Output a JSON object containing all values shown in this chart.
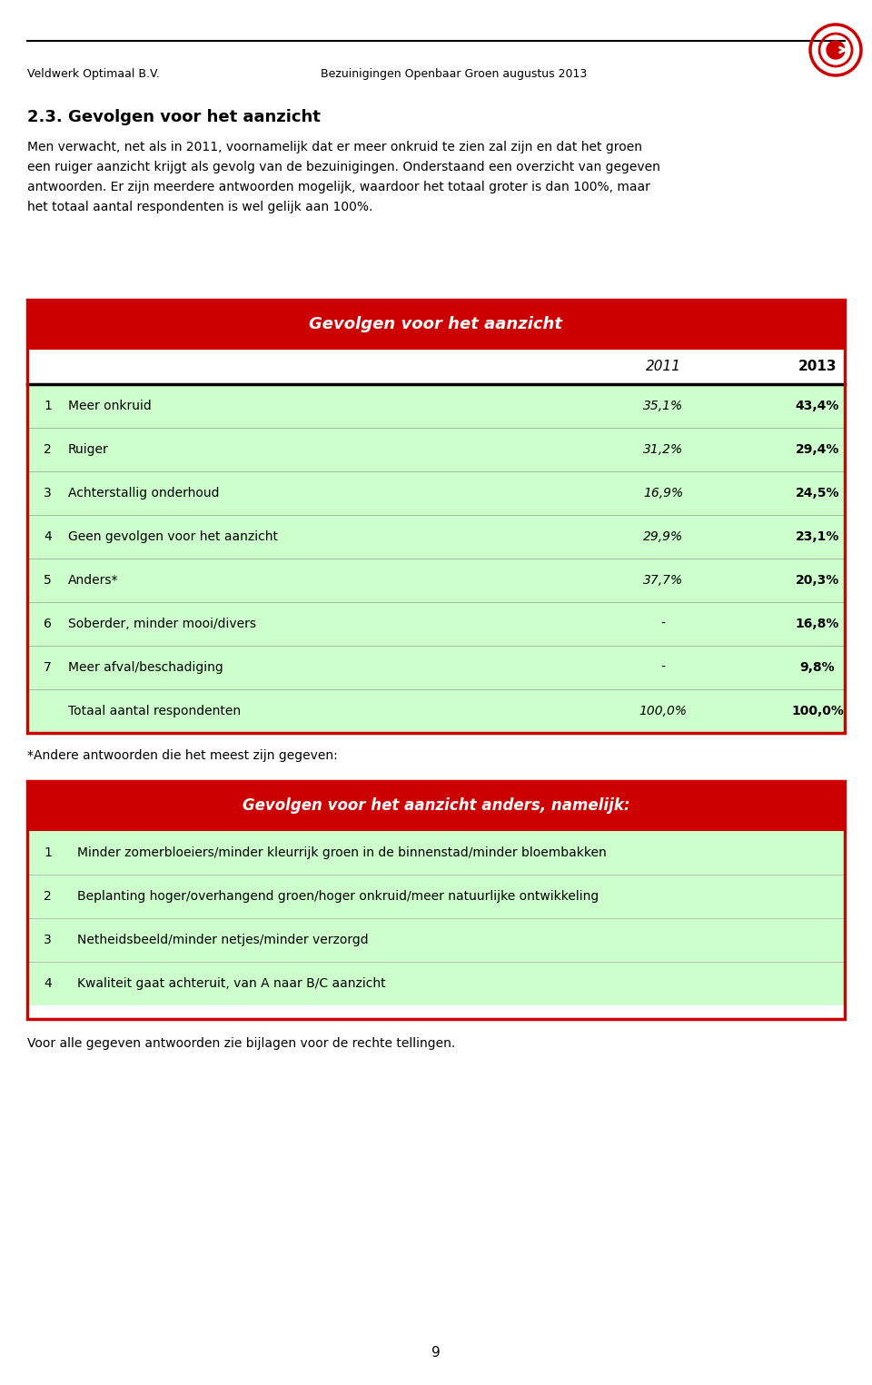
{
  "header_left": "Veldwerk Optimaal B.V.",
  "header_right": "Bezuinigingen Openbaar Groen augustus 2013",
  "section_title": "2.3. Gevolgen voor het aanzicht",
  "intro_text": "Men verwacht, net als in 2011, voornamelijk dat er meer onkruid te zien zal zijn en dat het groen\neen ruiger aanzicht krijgt als gevolg van de bezuinigingen. Onderstaand een overzicht van gegeven\nantwoorden. Er zijn meerdere antwoorden mogelijk, waardoor het totaal groter is dan 100%, maar\nhet totaal aantal respondenten is wel gelijk aan 100%.",
  "table1_title": "Gevolgen voor het aanzicht",
  "table1_col_headers": [
    "",
    "2011",
    "2013"
  ],
  "table1_rows": [
    [
      "1",
      "Meer onkruid",
      "35,1%",
      "43,4%"
    ],
    [
      "2",
      "Ruiger",
      "31,2%",
      "29,4%"
    ],
    [
      "3",
      "Achterstallig onderhoud",
      "16,9%",
      "24,5%"
    ],
    [
      "4",
      "Geen gevolgen voor het aanzicht",
      "29,9%",
      "23,1%"
    ],
    [
      "5",
      "Anders*",
      "37,7%",
      "20,3%"
    ],
    [
      "6",
      "Soberder, minder mooi/divers",
      "-",
      "16,8%"
    ],
    [
      "7",
      "Meer afval/beschadiging",
      "-",
      "9,8%"
    ],
    [
      "",
      "Totaal aantal respondenten",
      "100,0%",
      "100,0%"
    ]
  ],
  "footnote1": "*Andere antwoorden die het meest zijn gegeven:",
  "table2_title": "Gevolgen voor het aanzicht anders, namelijk:",
  "table2_rows": [
    [
      "1",
      "Minder zomerbloeiers/minder kleurrijk groen in de binnenstad/minder bloembakken"
    ],
    [
      "2",
      "Beplanting hoger/overhangend groen/hoger onkruid/meer natuurlijke ontwikkeling"
    ],
    [
      "3",
      "Netheidsbeeld/minder netjes/minder verzorgd"
    ],
    [
      "4",
      "Kwaliteit gaat achteruit, van A naar B/C aanzicht"
    ]
  ],
  "footnote2": "Voor alle gegeven antwoorden zie bijlagen voor de rechte tellingen.",
  "page_number": "9",
  "bg_color": "#ffffff",
  "header_line_color": "#000000",
  "table_header_bg": "#cc0000",
  "table_header_text": "#ffffff",
  "table_row_bg": "#ccffcc",
  "table_border_color": "#cc0000",
  "table_col2011_style": "italic",
  "table_col2013_style": "bold"
}
